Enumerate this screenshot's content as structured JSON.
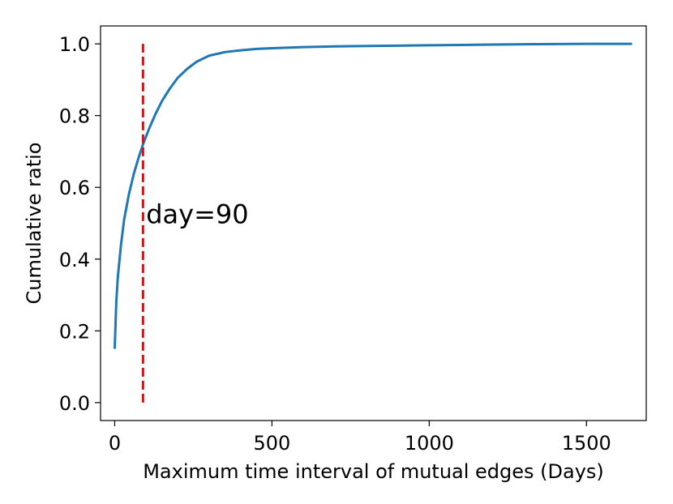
{
  "chart_data": {
    "type": "line",
    "title": "",
    "xlabel": "Maximum time interval of mutual edges (Days)",
    "ylabel": "Cumulative ratio",
    "xlim": [
      -45,
      1690
    ],
    "ylim": [
      -0.05,
      1.05
    ],
    "x_ticks": [
      0,
      500,
      1000,
      1500
    ],
    "x_tick_labels": [
      "0",
      "500",
      "1000",
      "1500"
    ],
    "y_ticks": [
      0.0,
      0.2,
      0.4,
      0.6,
      0.8,
      1.0
    ],
    "y_tick_labels": [
      "0.0",
      "0.2",
      "0.4",
      "0.6",
      "0.8",
      "1.0"
    ],
    "grid": false,
    "series": [
      {
        "color": "#1f77b4",
        "style": "solid",
        "x": [
          0,
          5,
          10,
          20,
          30,
          45,
          60,
          75,
          90,
          110,
          130,
          150,
          175,
          200,
          230,
          260,
          300,
          350,
          400,
          450,
          500,
          600,
          700,
          800,
          900,
          1000,
          1100,
          1200,
          1300,
          1400,
          1500,
          1600,
          1645
        ],
        "y": [
          0.15,
          0.28,
          0.35,
          0.44,
          0.51,
          0.58,
          0.635,
          0.68,
          0.72,
          0.765,
          0.805,
          0.84,
          0.875,
          0.905,
          0.93,
          0.95,
          0.967,
          0.977,
          0.982,
          0.986,
          0.988,
          0.991,
          0.993,
          0.994,
          0.995,
          0.996,
          0.997,
          0.998,
          0.999,
          0.9995,
          1.0,
          1.0,
          1.0
        ]
      }
    ],
    "reference_line": {
      "x": 90,
      "y_range": [
        0.0,
        1.0
      ],
      "color": "#ff0000",
      "style": "dashed"
    },
    "annotations": [
      {
        "text": "day=90",
        "x": 100,
        "y": 0.52
      }
    ]
  }
}
